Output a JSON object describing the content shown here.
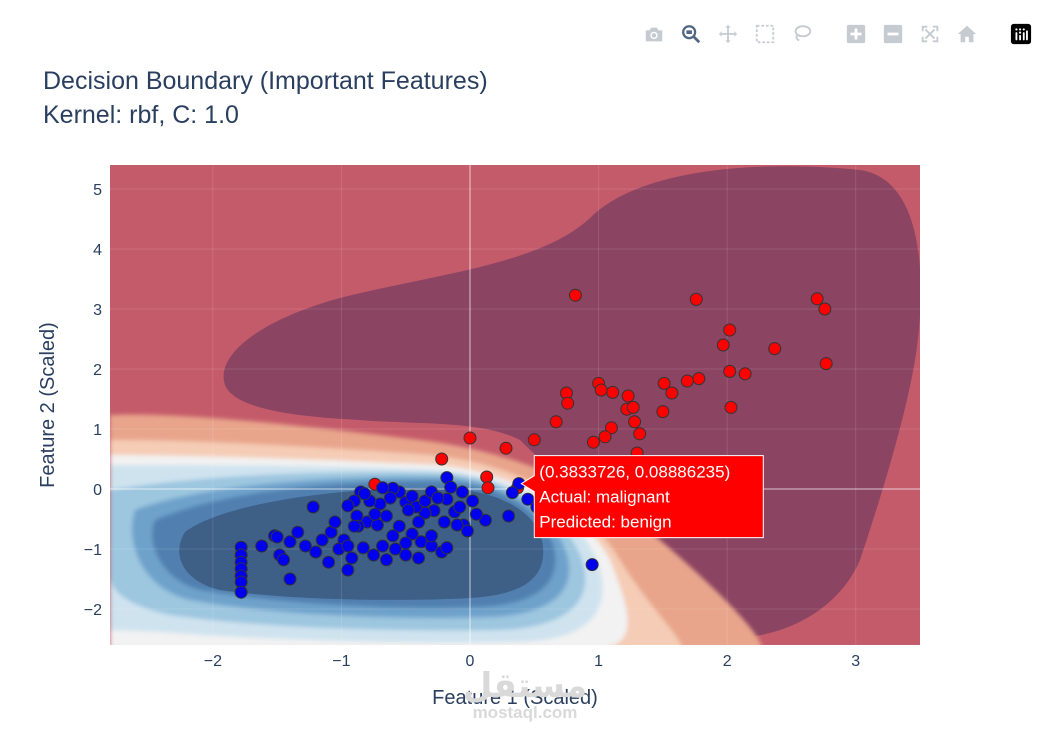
{
  "title": {
    "line1": "Decision Boundary (Important Features)",
    "line2": "Kernel: rbf, C: 1.0"
  },
  "modebar": {
    "buttons": [
      "camera-icon",
      "zoom-icon",
      "pan-icon",
      "box-select-icon",
      "lasso-icon",
      "zoom-in-icon",
      "zoom-out-icon",
      "autoscale-icon",
      "reset-axes-icon",
      "plotly-logo-icon"
    ]
  },
  "chart_data": {
    "type": "scatter",
    "title": "Decision Boundary (Important Features)\nKernel: rbf, C: 1.0",
    "xlabel": "Feature 1 (Scaled)",
    "ylabel": "Feature 2 (Scaled)",
    "xlim": [
      -2.8,
      3.5
    ],
    "ylim": [
      -2.6,
      5.4
    ],
    "xticks": [
      -2,
      -1,
      0,
      1,
      2,
      3
    ],
    "yticks": [
      -2,
      -1,
      0,
      1,
      2,
      3,
      4,
      5
    ],
    "xtick_labels": [
      "−2",
      "−1",
      "0",
      "1",
      "2",
      "3"
    ],
    "ytick_labels": [
      "−2",
      "−1",
      "0",
      "1",
      "2",
      "3",
      "4",
      "5"
    ],
    "grid": true,
    "colors": {
      "malignant_marker": "#ff0000",
      "benign_marker": "#0000ee",
      "marker_outline": "#333333",
      "malignant_region_dark": "#8b4462",
      "malignant_region": "#c45b6a",
      "benign_region_dark": "#3e5f86",
      "hover_bg": "#ff0000"
    },
    "series": [
      {
        "name": "malignant",
        "color": "#ff0000",
        "points": [
          [
            0.82,
            3.23
          ],
          [
            1.76,
            3.16
          ],
          [
            2.7,
            3.17
          ],
          [
            2.76,
            3.0
          ],
          [
            2.02,
            2.65
          ],
          [
            1.97,
            2.4
          ],
          [
            2.37,
            2.34
          ],
          [
            2.77,
            2.09
          ],
          [
            2.02,
            1.96
          ],
          [
            2.14,
            1.92
          ],
          [
            1.78,
            1.84
          ],
          [
            1.69,
            1.8
          ],
          [
            1.51,
            1.76
          ],
          [
            1.0,
            1.76
          ],
          [
            1.11,
            1.61
          ],
          [
            1.57,
            1.6
          ],
          [
            0.75,
            1.6
          ],
          [
            1.02,
            1.65
          ],
          [
            1.23,
            1.55
          ],
          [
            0.76,
            1.43
          ],
          [
            1.22,
            1.33
          ],
          [
            1.27,
            1.36
          ],
          [
            2.03,
            1.36
          ],
          [
            1.5,
            1.29
          ],
          [
            0.67,
            1.12
          ],
          [
            1.28,
            1.12
          ],
          [
            1.1,
            1.02
          ],
          [
            1.05,
            0.87
          ],
          [
            0.0,
            0.85
          ],
          [
            0.5,
            0.82
          ],
          [
            0.28,
            0.68
          ],
          [
            1.32,
            0.92
          ],
          [
            0.96,
            0.78
          ],
          [
            -0.22,
            0.5
          ],
          [
            0.13,
            0.2
          ],
          [
            -0.74,
            0.08
          ],
          [
            0.14,
            0.02
          ],
          [
            0.37,
            0.02
          ],
          [
            1.3,
            0.6
          ]
        ]
      },
      {
        "name": "benign",
        "color": "#0000ee",
        "points": [
          [
            0.38,
            0.09
          ],
          [
            0.45,
            -0.17
          ],
          [
            0.52,
            -0.3
          ],
          [
            0.95,
            -1.26
          ],
          [
            0.33,
            -0.06
          ],
          [
            0.3,
            -0.45
          ],
          [
            -0.18,
            0.19
          ],
          [
            -0.06,
            -0.05
          ],
          [
            -0.15,
            0.03
          ],
          [
            -0.18,
            -0.17
          ],
          [
            -0.12,
            -0.38
          ],
          [
            -0.28,
            -0.36
          ],
          [
            -0.2,
            -0.55
          ],
          [
            -0.05,
            -0.6
          ],
          [
            0.12,
            -0.52
          ],
          [
            0.05,
            -0.42
          ],
          [
            -0.02,
            -0.7
          ],
          [
            -0.1,
            -0.6
          ],
          [
            -0.35,
            -0.4
          ],
          [
            -0.42,
            -0.3
          ],
          [
            -0.5,
            -0.22
          ],
          [
            -0.55,
            -0.05
          ],
          [
            -0.6,
            0.01
          ],
          [
            -0.62,
            -0.15
          ],
          [
            -0.7,
            -0.25
          ],
          [
            -0.78,
            -0.2
          ],
          [
            -0.85,
            -0.05
          ],
          [
            -0.9,
            -0.2
          ],
          [
            -0.95,
            -0.28
          ],
          [
            -0.88,
            -0.45
          ],
          [
            -0.8,
            -0.55
          ],
          [
            -0.72,
            -0.6
          ],
          [
            -0.65,
            -0.45
          ],
          [
            -0.55,
            -0.62
          ],
          [
            -0.45,
            -0.75
          ],
          [
            -0.38,
            -0.88
          ],
          [
            -0.3,
            -0.95
          ],
          [
            -0.22,
            -1.05
          ],
          [
            -0.3,
            -0.78
          ],
          [
            -0.5,
            -0.9
          ],
          [
            -0.58,
            -1.0
          ],
          [
            -0.68,
            -0.95
          ],
          [
            -0.75,
            -1.1
          ],
          [
            -0.83,
            -0.98
          ],
          [
            -0.92,
            -1.15
          ],
          [
            -0.98,
            -0.85
          ],
          [
            -1.02,
            -1.0
          ],
          [
            -1.08,
            -0.72
          ],
          [
            -1.15,
            -0.85
          ],
          [
            -1.2,
            -1.05
          ],
          [
            -1.28,
            -0.95
          ],
          [
            -1.34,
            -0.72
          ],
          [
            -1.4,
            -0.88
          ],
          [
            -1.48,
            -1.1
          ],
          [
            -1.52,
            -0.78
          ],
          [
            -1.62,
            -0.95
          ],
          [
            -1.4,
            -1.5
          ],
          [
            -1.45,
            -1.18
          ],
          [
            -1.1,
            -1.22
          ],
          [
            -0.95,
            -1.35
          ],
          [
            -0.65,
            -1.18
          ],
          [
            -0.5,
            -1.1
          ],
          [
            -0.4,
            -1.15
          ],
          [
            -1.78,
            -0.97
          ],
          [
            -1.78,
            -1.1
          ],
          [
            -1.78,
            -1.22
          ],
          [
            -1.78,
            -1.33
          ],
          [
            -1.78,
            -1.45
          ],
          [
            -1.78,
            -1.55
          ],
          [
            -1.78,
            -1.72
          ],
          [
            -1.5,
            -0.8
          ],
          [
            -1.22,
            -0.3
          ],
          [
            -0.87,
            -0.62
          ],
          [
            -0.74,
            -0.42
          ],
          [
            -0.48,
            -0.35
          ],
          [
            -0.35,
            -0.2
          ],
          [
            -0.3,
            -0.05
          ],
          [
            -0.45,
            -0.12
          ],
          [
            -0.68,
            0.02
          ],
          [
            -0.82,
            -0.08
          ],
          [
            -0.6,
            -0.78
          ],
          [
            -0.18,
            -0.98
          ],
          [
            -0.08,
            -0.3
          ],
          [
            -0.25,
            -0.15
          ],
          [
            0.02,
            -0.2
          ],
          [
            -0.4,
            -0.55
          ],
          [
            -0.9,
            -0.62
          ],
          [
            -1.05,
            -0.55
          ],
          [
            -0.95,
            -0.95
          ]
        ]
      }
    ],
    "hover": {
      "x_text": "0.3833726",
      "y_text": "0.08886235",
      "coords": "(0.3833726, 0.08886235)",
      "actual": "Actual: malignant",
      "predicted": "Predicted: benign",
      "point": [
        0.3833726,
        0.08886235
      ]
    }
  },
  "watermark": {
    "arabic": "مستقل",
    "latin": "mostaql.com"
  }
}
